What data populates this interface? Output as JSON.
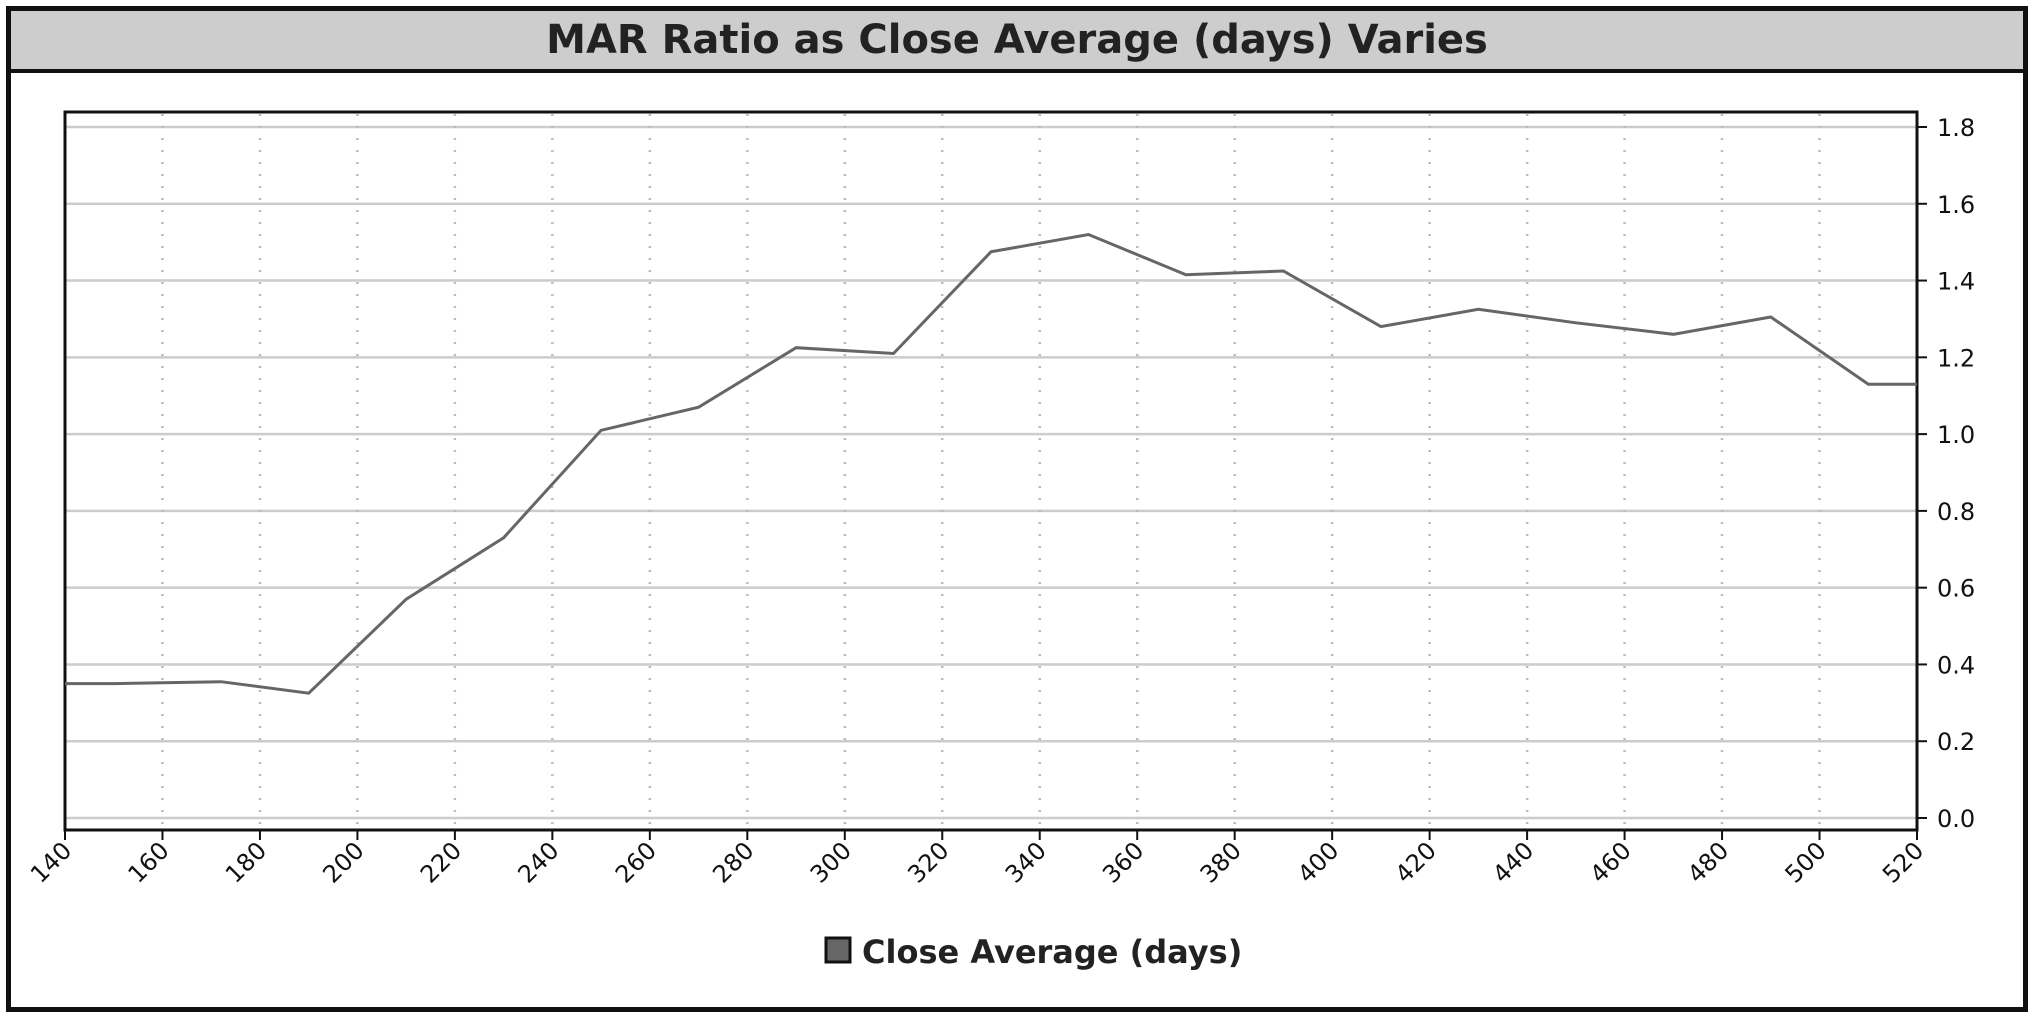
{
  "chart_data": {
    "type": "line",
    "title": "MAR Ratio as Close Average (days) Varies",
    "xlabel": "",
    "ylabel": "",
    "xlim": [
      140,
      520
    ],
    "ylim": [
      0.0,
      1.8
    ],
    "x_ticks": [
      140,
      160,
      180,
      200,
      220,
      240,
      260,
      280,
      300,
      320,
      340,
      360,
      380,
      400,
      420,
      440,
      460,
      480,
      500,
      520
    ],
    "y_ticks": [
      "0.0",
      "0.2",
      "0.4",
      "0.6",
      "0.8",
      "1.0",
      "1.2",
      "1.4",
      "1.6",
      "1.8"
    ],
    "y_axis_side": "right",
    "grid": {
      "horizontal": "solid",
      "vertical": "dotted"
    },
    "legend": {
      "position": "bottom-center",
      "label": "Close Average (days)"
    },
    "series": [
      {
        "name": "Close Average (days)",
        "color": "#666666",
        "x": [
          140,
          150,
          172,
          190,
          210,
          230,
          250,
          270,
          290,
          310,
          330,
          350,
          370,
          390,
          410,
          430,
          450,
          470,
          490,
          510,
          520
        ],
        "y": [
          0.35,
          0.35,
          0.355,
          0.325,
          0.57,
          0.73,
          1.01,
          1.07,
          1.225,
          1.21,
          1.475,
          1.52,
          1.415,
          1.425,
          1.28,
          1.325,
          1.29,
          1.26,
          1.305,
          1.13,
          1.13
        ]
      }
    ]
  },
  "colors": {
    "title_bar": "#cdcdcd",
    "frame": "#111111",
    "gridline": "#cccccc",
    "series_line": "#666666"
  }
}
